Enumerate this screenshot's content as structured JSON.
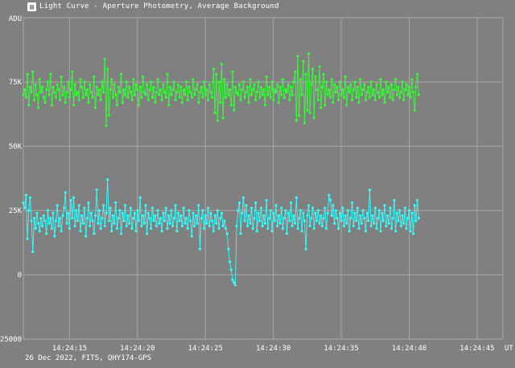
{
  "window": {
    "title": "Light Curve - Aperture Photometry, Average Background",
    "icon": "app-icon"
  },
  "footer": "26 Dec 2022, FITS, QHY174-GPS",
  "colors": {
    "background": "#808080",
    "grid": "#a8a8a8",
    "series_green": "#33ff33",
    "series_cyan": "#33ffff"
  },
  "chart_data": {
    "type": "line",
    "title": "Light Curve - Aperture Photometry, Average Background",
    "ylabel": "ADU",
    "xlabel": "UT",
    "ylim": [
      -25000,
      100000
    ],
    "xlim": [
      "14:24:11.6",
      "14:24:46.9"
    ],
    "yticks": [
      {
        "value": -25000,
        "label": "-25000"
      },
      {
        "value": 0,
        "label": "0"
      },
      {
        "value": 25000,
        "label": "25K"
      },
      {
        "value": 50000,
        "label": "50K"
      },
      {
        "value": 75000,
        "label": "75K"
      },
      {
        "value": 100000,
        "label": "ADU"
      }
    ],
    "xticks": [
      "14:24:15",
      "14:24:20",
      "14:24:25",
      "14:24:30",
      "14:24:35",
      "14:24:40",
      "14:24:45"
    ],
    "grid": true,
    "legend": "none",
    "sampling": {
      "start": "14:24:11.6",
      "interval_s": 0.1
    },
    "series": [
      {
        "color": "#33ff33",
        "values": [
          70000,
          72000,
          69000,
          78000,
          66000,
          73000,
          71000,
          79000,
          68000,
          74000,
          70000,
          65000,
          76000,
          71000,
          73000,
          69000,
          67000,
          72000,
          75000,
          70000,
          78000,
          66000,
          73000,
          71000,
          69000,
          74000,
          72000,
          68000,
          77000,
          70000,
          73000,
          67000,
          71000,
          75000,
          69000,
          72000,
          79000,
          66000,
          74000,
          70000,
          71000,
          68000,
          76000,
          73000,
          69000,
          75000,
          70000,
          72000,
          67000,
          74000,
          71000,
          69000,
          77000,
          65000,
          73000,
          70000,
          72000,
          68000,
          75000,
          71000,
          84000,
          58000,
          80000,
          62000,
          72000,
          76000,
          69000,
          74000,
          70000,
          66000,
          73000,
          71000,
          78000,
          67000,
          72000,
          70000,
          75000,
          69000,
          73000,
          71000,
          68000,
          76000,
          70000,
          74000,
          72000,
          66000,
          73000,
          69000,
          77000,
          71000,
          70000,
          74000,
          68000,
          72000,
          75000,
          69000,
          73000,
          67000,
          71000,
          76000,
          70000,
          72000,
          68000,
          74000,
          71000,
          69000,
          78000,
          66000,
          73000,
          70000,
          72000,
          75000,
          68000,
          71000,
          74000,
          69000,
          73000,
          67000,
          72000,
          70000,
          75000,
          68000,
          73000,
          71000,
          69000,
          76000,
          70000,
          72000,
          74000,
          67000,
          71000,
          73000,
          69000,
          75000,
          70000,
          72000,
          68000,
          74000,
          71000,
          69000,
          80000,
          63000,
          78000,
          60000,
          75000,
          67000,
          82000,
          61000,
          76000,
          69000,
          74000,
          70000,
          72000,
          66000,
          79000,
          64000,
          73000,
          71000,
          70000,
          74000,
          68000,
          72000,
          75000,
          69000,
          71000,
          73000,
          67000,
          76000,
          70000,
          72000,
          74000,
          68000,
          71000,
          75000,
          69000,
          73000,
          70000,
          72000,
          66000,
          77000,
          70000,
          73000,
          69000,
          75000,
          68000,
          72000,
          71000,
          74000,
          67000,
          73000,
          70000,
          76000,
          69000,
          72000,
          71000,
          74000,
          68000,
          73000,
          70000,
          75000,
          79000,
          60000,
          85000,
          62000,
          76000,
          70000,
          83000,
          59000,
          78000,
          64000,
          86000,
          63000,
          74000,
          80000,
          61000,
          77000,
          72000,
          68000,
          81000,
          65000,
          73000,
          78000,
          66000,
          75000,
          70000,
          72000,
          69000,
          76000,
          67000,
          74000,
          71000,
          73000,
          68000,
          75000,
          70000,
          72000,
          69000,
          77000,
          66000,
          73000,
          71000,
          74000,
          68000,
          72000,
          75000,
          69000,
          73000,
          67000,
          76000,
          70000,
          72000,
          74000,
          68000,
          71000,
          73000,
          69000,
          75000,
          70000,
          72000,
          68000,
          74000,
          71000,
          69000,
          76000,
          70000,
          72000,
          67000,
          75000,
          71000,
          73000,
          69000,
          74000,
          68000,
          72000,
          76000,
          70000,
          73000,
          69000,
          71000,
          75000,
          68000,
          72000,
          74000,
          70000,
          73000,
          69000,
          76000,
          71000,
          64000,
          73000,
          78000,
          70000
        ]
      },
      {
        "color": "#33ffff",
        "values": [
          28000,
          26000,
          31000,
          14000,
          25000,
          30000,
          21000,
          9000,
          22000,
          18000,
          24000,
          20000,
          17000,
          22000,
          19000,
          23000,
          21000,
          16000,
          25000,
          20000,
          22000,
          18000,
          24000,
          15000,
          21000,
          27000,
          19000,
          22000,
          17000,
          23000,
          26000,
          32000,
          20000,
          24000,
          18000,
          29000,
          22000,
          30000,
          19000,
          25000,
          21000,
          27000,
          17000,
          23000,
          20000,
          26000,
          15000,
          22000,
          28000,
          19000,
          24000,
          21000,
          16000,
          23000,
          33000,
          20000,
          25000,
          18000,
          22000,
          27000,
          19000,
          24000,
          37000,
          21000,
          26000,
          17000,
          23000,
          20000,
          28000,
          18000,
          22000,
          25000,
          16000,
          24000,
          21000,
          27000,
          19000,
          23000,
          20000,
          26000,
          18000,
          22000,
          24000,
          17000,
          25000,
          21000,
          30000,
          19000,
          23000,
          20000,
          27000,
          16000,
          24000,
          22000,
          18000,
          26000,
          21000,
          23000,
          19000,
          25000,
          20000,
          22000,
          17000,
          24000,
          21000,
          26000,
          18000,
          23000,
          20000,
          25000,
          19000,
          22000,
          27000,
          17000,
          24000,
          21000,
          23000,
          19000,
          26000,
          20000,
          22000,
          18000,
          25000,
          21000,
          15000,
          24000,
          19000,
          23000,
          20000,
          27000,
          10000,
          22000,
          25000,
          18000,
          23000,
          20000,
          26000,
          19000,
          24000,
          21000,
          17000,
          23000,
          20000,
          25000,
          18000,
          22000,
          24000,
          19000,
          21000,
          18000,
          16000,
          10000,
          5000,
          2000,
          -2000,
          -3000,
          -4000,
          19000,
          25000,
          28000,
          16000,
          24000,
          30000,
          21000,
          27000,
          19000,
          23000,
          20000,
          26000,
          18000,
          22000,
          28000,
          17000,
          24000,
          21000,
          26000,
          19000,
          23000,
          20000,
          29000,
          18000,
          22000,
          25000,
          17000,
          24000,
          21000,
          27000,
          19000,
          23000,
          20000,
          26000,
          18000,
          22000,
          25000,
          16000,
          24000,
          21000,
          28000,
          19000,
          23000,
          20000,
          30000,
          18000,
          22000,
          25000,
          17000,
          24000,
          21000,
          10000,
          23000,
          27000,
          19000,
          22000,
          26000,
          18000,
          24000,
          21000,
          25000,
          20000,
          23000,
          19000,
          22000,
          26000,
          18000,
          24000,
          31000,
          29000,
          23000,
          27000,
          20000,
          25000,
          22000,
          18000,
          24000,
          21000,
          26000,
          19000,
          23000,
          20000,
          25000,
          17000,
          22000,
          28000,
          19000,
          24000,
          21000,
          26000,
          18000,
          23000,
          20000,
          25000,
          22000,
          17000,
          24000,
          21000,
          33000,
          19000,
          23000,
          20000,
          26000,
          18000,
          22000,
          25000,
          17000,
          24000,
          21000,
          27000,
          19000,
          23000,
          20000,
          26000,
          18000,
          22000,
          29000,
          17000,
          24000,
          21000,
          25000,
          19000,
          23000,
          20000,
          26000,
          18000,
          22000,
          25000,
          17000,
          24000,
          16000,
          27000,
          21000,
          29000,
          22000
        ]
      }
    ]
  }
}
